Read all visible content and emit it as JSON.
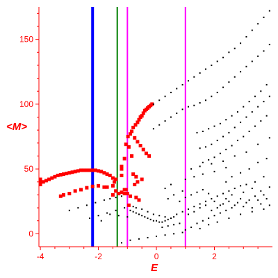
{
  "chart_data": {
    "type": "scatter",
    "title": "",
    "xlabel": "E",
    "ylabel": "<M>",
    "xlim": [
      -4.05,
      4.0
    ],
    "ylim": [
      -10,
      175
    ],
    "x_ticks": [
      -4,
      -2,
      0,
      2
    ],
    "x_tick_labels": [
      "-4",
      "-2",
      "0",
      "2"
    ],
    "y_ticks": [
      0,
      50,
      100,
      150
    ],
    "y_tick_labels": [
      "0",
      "50",
      "100",
      "150"
    ],
    "grid": false,
    "legend": "none",
    "colors": {
      "axes": "#ff0000",
      "small_points": "#000000",
      "large_points": "#ff0000",
      "line_blue": "#0000ff",
      "line_green": "#008000",
      "line_magenta": "#ff00ff"
    },
    "vertical_lines": [
      {
        "x": -2.2,
        "color": "#0000ff",
        "width": 4
      },
      {
        "x": -1.35,
        "color": "#008000",
        "width": 2
      },
      {
        "x": -1.0,
        "color": "#ff00ff",
        "width": 2
      },
      {
        "x": 1.0,
        "color": "#ff00ff",
        "width": 2
      }
    ],
    "series": [
      {
        "color": "#ff0000",
        "marker": "square-large",
        "points": [
          [
            -4.0,
            38
          ],
          [
            -3.9,
            40
          ],
          [
            -3.8,
            41
          ],
          [
            -3.7,
            42
          ],
          [
            -3.6,
            43
          ],
          [
            -3.5,
            44
          ],
          [
            -3.4,
            45
          ],
          [
            -3.3,
            45.5
          ],
          [
            -3.2,
            46
          ],
          [
            -3.1,
            46.5
          ],
          [
            -3.0,
            47
          ],
          [
            -2.9,
            47.5
          ],
          [
            -2.8,
            48
          ],
          [
            -2.7,
            48.5
          ],
          [
            -2.6,
            49
          ],
          [
            -2.5,
            49
          ],
          [
            -2.4,
            49
          ],
          [
            -2.3,
            49
          ],
          [
            -2.2,
            49
          ],
          [
            -2.1,
            49
          ],
          [
            -2.0,
            48.5
          ],
          [
            -1.9,
            48
          ],
          [
            -1.8,
            47
          ],
          [
            -1.7,
            46
          ],
          [
            -1.6,
            45
          ],
          [
            -1.5,
            43
          ],
          [
            -1.45,
            40
          ],
          [
            -4.0,
            40
          ],
          [
            -4.0,
            42
          ],
          [
            -3.3,
            29
          ],
          [
            -3.2,
            30
          ],
          [
            -3.0,
            31
          ],
          [
            -2.8,
            33
          ],
          [
            -2.6,
            34
          ],
          [
            -2.4,
            35.5
          ],
          [
            -2.2,
            36.5
          ],
          [
            -2.0,
            37
          ],
          [
            -1.8,
            36
          ],
          [
            -1.7,
            36
          ],
          [
            -1.5,
            37
          ],
          [
            -1.4,
            33
          ],
          [
            -1.2,
            32
          ],
          [
            -1.1,
            31
          ],
          [
            -1.0,
            31
          ],
          [
            -0.9,
            29
          ],
          [
            -0.7,
            28
          ],
          [
            -0.6,
            26
          ],
          [
            -1.5,
            30
          ],
          [
            -1.3,
            31
          ],
          [
            -1.1,
            34
          ],
          [
            -0.95,
            22
          ],
          [
            -1.2,
            50
          ],
          [
            -1.2,
            52
          ],
          [
            -1.1,
            58
          ],
          [
            -0.85,
            60
          ],
          [
            -0.8,
            46
          ],
          [
            -0.7,
            44
          ],
          [
            -0.5,
            42
          ],
          [
            -1.4,
            42
          ],
          [
            -1.2,
            45
          ],
          [
            -1.05,
            34
          ],
          [
            -0.75,
            38
          ],
          [
            -0.65,
            40
          ],
          [
            -0.98,
            75
          ],
          [
            -0.9,
            77
          ],
          [
            -0.85,
            79
          ],
          [
            -0.8,
            82
          ],
          [
            -0.72,
            84
          ],
          [
            -0.65,
            86
          ],
          [
            -0.6,
            88
          ],
          [
            -0.55,
            90
          ],
          [
            -0.5,
            91
          ],
          [
            -0.45,
            93
          ],
          [
            -0.4,
            95
          ],
          [
            -0.35,
            96
          ],
          [
            -0.3,
            97
          ],
          [
            -0.25,
            98
          ],
          [
            -0.2,
            99
          ],
          [
            -0.15,
            100
          ],
          [
            -0.75,
            74
          ],
          [
            -0.65,
            71
          ],
          [
            -0.55,
            68
          ],
          [
            -0.45,
            65
          ],
          [
            -0.35,
            62
          ],
          [
            -0.25,
            60
          ],
          [
            -1.05,
            69
          ],
          [
            -0.95,
            67
          ]
        ]
      },
      {
        "color": "#000000",
        "marker": "dot-small",
        "points": [
          [
            -0.1,
            100
          ],
          [
            0.1,
            103
          ],
          [
            0.3,
            106
          ],
          [
            0.5,
            109
          ],
          [
            0.7,
            112
          ],
          [
            0.9,
            115
          ],
          [
            1.1,
            118
          ],
          [
            1.3,
            121
          ],
          [
            1.5,
            124
          ],
          [
            1.7,
            127
          ],
          [
            1.9,
            130
          ],
          [
            2.1,
            133
          ],
          [
            2.3,
            136
          ],
          [
            2.5,
            140
          ],
          [
            2.7,
            143
          ],
          [
            2.9,
            147
          ],
          [
            3.1,
            152
          ],
          [
            3.3,
            157
          ],
          [
            3.5,
            162
          ],
          [
            3.7,
            167
          ],
          [
            3.9,
            172
          ],
          [
            -0.1,
            81
          ],
          [
            0.1,
            84
          ],
          [
            0.3,
            87
          ],
          [
            0.5,
            90
          ],
          [
            0.7,
            93
          ],
          [
            0.9,
            96
          ],
          [
            1.1,
            98
          ],
          [
            1.3,
            99
          ],
          [
            1.5,
            101
          ],
          [
            1.7,
            103
          ],
          [
            1.9,
            106
          ],
          [
            2.1,
            109
          ],
          [
            2.3,
            113
          ],
          [
            2.5,
            117
          ],
          [
            2.7,
            121
          ],
          [
            2.9,
            125
          ],
          [
            3.1,
            129
          ],
          [
            3.3,
            133
          ],
          [
            3.5,
            137
          ],
          [
            3.7,
            141
          ],
          [
            3.9,
            146
          ],
          [
            1.4,
            78
          ],
          [
            1.6,
            79
          ],
          [
            1.8,
            81
          ],
          [
            2.0,
            83
          ],
          [
            2.2,
            85
          ],
          [
            2.4,
            88
          ],
          [
            2.6,
            91
          ],
          [
            2.8,
            94
          ],
          [
            3.0,
            98
          ],
          [
            3.2,
            102
          ],
          [
            3.4,
            106
          ],
          [
            3.6,
            110
          ],
          [
            3.8,
            115
          ],
          [
            1.5,
            66
          ],
          [
            1.7,
            67
          ],
          [
            1.9,
            69
          ],
          [
            2.1,
            72
          ],
          [
            2.3,
            75
          ],
          [
            2.5,
            78
          ],
          [
            2.7,
            82
          ],
          [
            2.9,
            86
          ],
          [
            3.1,
            90
          ],
          [
            3.3,
            94
          ],
          [
            3.5,
            98
          ],
          [
            3.7,
            102
          ],
          [
            3.9,
            106
          ],
          [
            1.6,
            55
          ],
          [
            1.8,
            57
          ],
          [
            2.0,
            59
          ],
          [
            2.2,
            62
          ],
          [
            2.4,
            65
          ],
          [
            2.6,
            68
          ],
          [
            2.8,
            72
          ],
          [
            3.0,
            75
          ],
          [
            3.2,
            79
          ],
          [
            3.4,
            83
          ],
          [
            3.6,
            87
          ],
          [
            3.8,
            91
          ],
          [
            1.2,
            50
          ],
          [
            1.5,
            52
          ],
          [
            1.9,
            54
          ],
          [
            2.3,
            56
          ],
          [
            2.7,
            60
          ],
          [
            3.1,
            63
          ],
          [
            3.5,
            69
          ],
          [
            3.9,
            74
          ],
          [
            2.4,
            40
          ],
          [
            2.6,
            44
          ],
          [
            2.9,
            47
          ],
          [
            3.2,
            50
          ],
          [
            3.5,
            55
          ],
          [
            3.8,
            58
          ],
          [
            1.0,
            42
          ],
          [
            1.3,
            44
          ],
          [
            1.6,
            46
          ],
          [
            2.0,
            48
          ],
          [
            2.4,
            51
          ],
          [
            -3.0,
            18
          ],
          [
            -2.7,
            20
          ],
          [
            -2.4,
            22
          ],
          [
            -2.1,
            24
          ],
          [
            -1.8,
            26
          ],
          [
            -1.6,
            27
          ],
          [
            -1.4,
            28
          ],
          [
            -1.2,
            29
          ],
          [
            -2.3,
            12
          ],
          [
            -2.0,
            14
          ],
          [
            -1.7,
            16
          ],
          [
            -1.4,
            18
          ],
          [
            -1.1,
            20
          ],
          [
            -0.8,
            21
          ],
          [
            -0.9,
            18
          ],
          [
            -0.8,
            17
          ],
          [
            -0.7,
            16
          ],
          [
            -0.6,
            15
          ],
          [
            -0.5,
            14
          ],
          [
            -0.4,
            13
          ],
          [
            -0.3,
            12
          ],
          [
            -0.2,
            11
          ],
          [
            -0.1,
            10
          ],
          [
            0.0,
            10
          ],
          [
            0.1,
            9
          ],
          [
            0.2,
            9
          ],
          [
            0.3,
            10
          ],
          [
            0.4,
            11
          ],
          [
            0.5,
            12
          ],
          [
            0.6,
            13
          ],
          [
            -0.7,
            20
          ],
          [
            -0.5,
            19
          ],
          [
            -0.3,
            17
          ],
          [
            -0.1,
            15
          ],
          [
            0.1,
            14
          ],
          [
            0.3,
            13
          ],
          [
            0.5,
            12
          ],
          [
            0.7,
            15
          ],
          [
            0.9,
            17
          ],
          [
            -1.2,
            -7
          ],
          [
            -0.9,
            -5
          ],
          [
            -0.6,
            -4
          ],
          [
            -0.3,
            -3
          ],
          [
            0.0,
            -2
          ],
          [
            0.3,
            -1
          ],
          [
            0.6,
            0
          ],
          [
            0.9,
            1
          ],
          [
            0.2,
            5
          ],
          [
            0.4,
            6
          ],
          [
            0.6,
            7
          ],
          [
            0.8,
            8
          ],
          [
            1.0,
            3
          ],
          [
            1.2,
            5
          ],
          [
            1.4,
            8
          ],
          [
            1.6,
            10
          ],
          [
            1.8,
            12
          ],
          [
            2.0,
            14
          ],
          [
            2.2,
            16
          ],
          [
            2.4,
            18
          ],
          [
            2.6,
            20
          ],
          [
            1.1,
            19
          ],
          [
            1.3,
            21
          ],
          [
            1.5,
            23
          ],
          [
            1.7,
            25
          ],
          [
            1.9,
            27
          ],
          [
            2.1,
            29
          ],
          [
            2.3,
            31
          ],
          [
            2.5,
            33
          ],
          [
            2.7,
            35
          ],
          [
            2.9,
            37
          ],
          [
            3.1,
            38
          ],
          [
            1.0,
            28
          ],
          [
            1.2,
            30
          ],
          [
            1.4,
            32
          ],
          [
            1.6,
            34
          ],
          [
            1.8,
            31
          ],
          [
            2.0,
            25
          ],
          [
            2.2,
            22
          ],
          [
            2.4,
            27
          ],
          [
            2.6,
            30
          ],
          [
            2.8,
            24
          ],
          [
            3.0,
            21
          ],
          [
            3.2,
            26
          ],
          [
            3.4,
            29
          ],
          [
            3.6,
            23
          ],
          [
            3.8,
            27
          ],
          [
            1.1,
            15
          ],
          [
            1.3,
            17
          ],
          [
            1.5,
            20
          ],
          [
            1.7,
            22
          ],
          [
            1.9,
            18
          ],
          [
            2.1,
            20
          ],
          [
            2.3,
            23
          ],
          [
            2.5,
            25
          ],
          [
            2.7,
            22
          ],
          [
            2.9,
            27
          ],
          [
            3.1,
            24
          ],
          [
            3.3,
            20
          ],
          [
            3.5,
            26
          ],
          [
            3.7,
            30
          ],
          [
            3.9,
            22
          ],
          [
            0.8,
            25
          ],
          [
            0.9,
            33
          ],
          [
            0.6,
            30
          ],
          [
            0.4,
            27
          ],
          [
            0.3,
            35
          ],
          [
            0.5,
            38
          ],
          [
            3.0,
            32
          ],
          [
            3.3,
            35
          ],
          [
            3.6,
            33
          ],
          [
            3.9,
            36
          ],
          [
            3.4,
            40
          ],
          [
            3.7,
            44
          ],
          [
            1.5,
            4
          ],
          [
            1.8,
            7
          ],
          [
            2.1,
            9
          ],
          [
            2.5,
            12
          ],
          [
            2.9,
            15
          ],
          [
            3.3,
            17
          ],
          [
            3.7,
            19
          ],
          [
            -1.6,
            15
          ],
          [
            -1.3,
            14
          ],
          [
            -1.0,
            13
          ],
          [
            -1.9,
            10
          ]
        ]
      }
    ]
  }
}
